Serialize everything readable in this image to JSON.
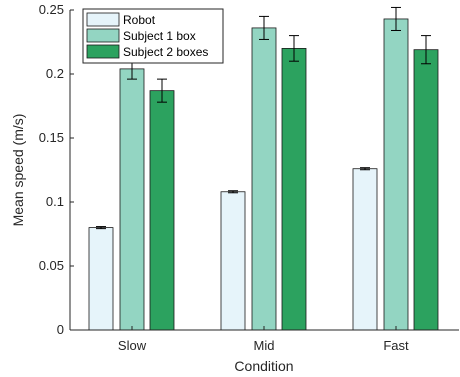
{
  "chart_data": {
    "type": "bar",
    "xlabel": "Condition",
    "ylabel": "Mean speed (m/s)",
    "categories": [
      "Slow",
      "Mid",
      "Fast"
    ],
    "ylim": [
      0,
      0.25
    ],
    "yticks": [
      0,
      0.05,
      0.1,
      0.15,
      0.2,
      0.25
    ],
    "ytick_labels": [
      "0",
      "0.05",
      "0.1",
      "0.15",
      "0.2",
      "0.25"
    ],
    "grid": false,
    "legend_position": "top-left",
    "series": [
      {
        "name": "Robot",
        "values": [
          0.08,
          0.108,
          0.126
        ],
        "errors": [
          0.0008,
          0.0008,
          0.0008
        ],
        "color": "#e6f4fa"
      },
      {
        "name": "Subject 1 box",
        "values": [
          0.204,
          0.236,
          0.243
        ],
        "errors": [
          0.008,
          0.009,
          0.009
        ],
        "color": "#93d5c2"
      },
      {
        "name": "Subject 2 boxes",
        "values": [
          0.187,
          0.22,
          0.219
        ],
        "errors": [
          0.009,
          0.01,
          0.011
        ],
        "color": "#2ca25f"
      }
    ]
  }
}
